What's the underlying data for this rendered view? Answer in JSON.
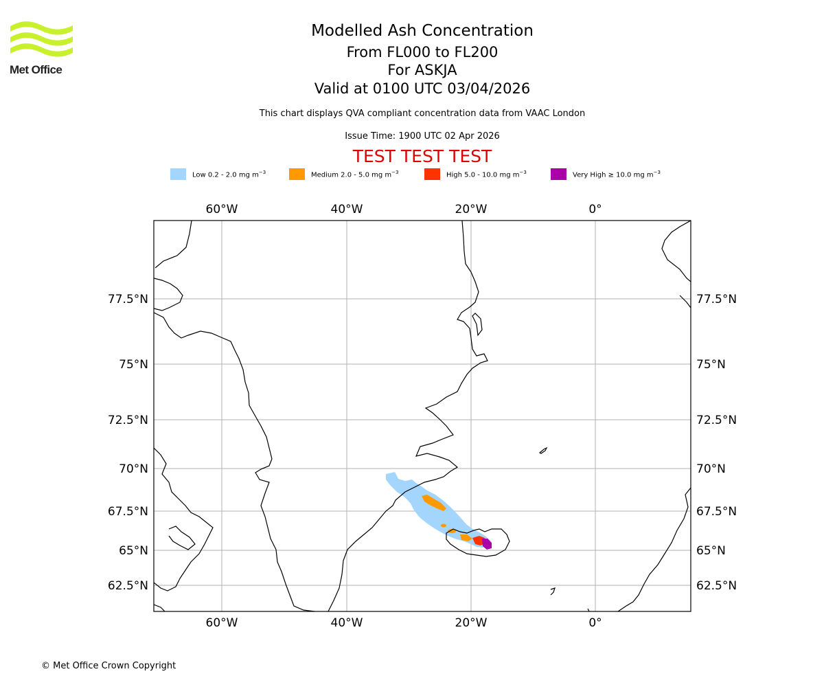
{
  "logo": {
    "name": "Met Office"
  },
  "title": {
    "main": "Modelled Ash Concentration",
    "levels": "From FL000 to FL200",
    "volcano": "For ASKJA",
    "valid": "Valid at 0100 UTC 03/04/2026",
    "description": "This chart displays QVA compliant concentration data from VAAC London",
    "issue_time": "Issue Time: 1900 UTC 02 Apr 2026",
    "test_banner": "TEST TEST TEST"
  },
  "legend": [
    {
      "label": "Low 0.2 - 2.0 mg m",
      "exp": "−3",
      "color": "#a3d5fd"
    },
    {
      "label": "Medium 2.0 - 5.0 mg m",
      "exp": "−3",
      "color": "#ff9900"
    },
    {
      "label": "High 5.0 - 10.0 mg m",
      "exp": "−3",
      "color": "#ff3300"
    },
    {
      "label": "Very High  ≥  10.0 mg m",
      "exp": "−3",
      "color": "#aa00aa"
    }
  ],
  "map": {
    "lon_ticks": [
      "60°W",
      "40°W",
      "20°W",
      "0°"
    ],
    "lat_ticks": [
      "77.5°N",
      "75°N",
      "72.5°N",
      "70°N",
      "67.5°N",
      "65°N",
      "62.5°N"
    ]
  },
  "footer": {
    "copyright": "© Met Office Crown Copyright"
  }
}
